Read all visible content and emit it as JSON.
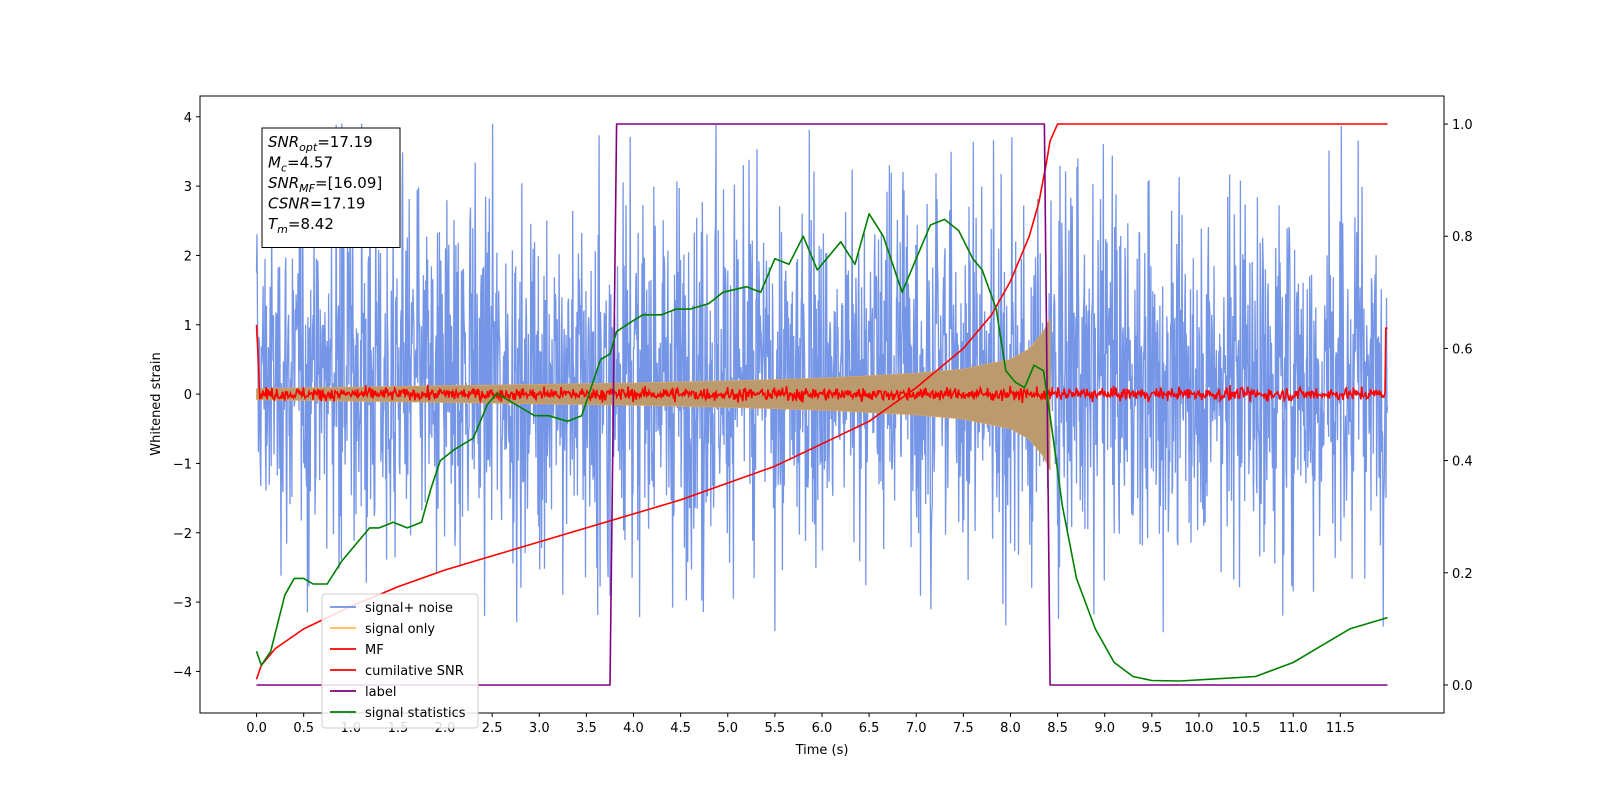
{
  "chart_data": {
    "type": "line",
    "title": "",
    "xlabel": "Time (s)",
    "ylabel": "Whitened strain",
    "xlim": [
      -0.6,
      12.6
    ],
    "ylim": [
      -4.6,
      4.3
    ],
    "y2lim": [
      -0.05,
      1.05
    ],
    "x_ticks": [
      0.0,
      0.5,
      1.0,
      1.5,
      2.0,
      2.5,
      3.0,
      3.5,
      4.0,
      4.5,
      5.0,
      5.5,
      6.0,
      6.5,
      7.0,
      7.5,
      8.0,
      8.5,
      9.0,
      9.5,
      10.0,
      10.5,
      11.0,
      11.5
    ],
    "x_tick_labels": [
      "0.0",
      "0.5",
      "1.0",
      "1.5",
      "2.0",
      "2.5",
      "3.0",
      "3.5",
      "4.0",
      "4.5",
      "5.0",
      "5.5",
      "6.0",
      "6.5",
      "7.0",
      "7.5",
      "8.0",
      "8.5",
      "9.0",
      "9.5",
      "10.0",
      "10.5",
      "11.0",
      "11.5"
    ],
    "y_ticks": [
      -4,
      -3,
      -2,
      -1,
      0,
      1,
      2,
      3,
      4
    ],
    "y_tick_labels": [
      "−4",
      "−3",
      "−2",
      "−1",
      "0",
      "1",
      "2",
      "3",
      "4"
    ],
    "y2_ticks": [
      0.0,
      0.2,
      0.4,
      0.6,
      0.8,
      1.0
    ],
    "y2_tick_labels": [
      "0.0",
      "0.2",
      "0.4",
      "0.6",
      "0.8",
      "1.0"
    ],
    "grid": false,
    "legend_position": "lower-left",
    "annotation": {
      "lines": [
        {
          "base": "SNR",
          "sub": "opt",
          "rest": "=17.19"
        },
        {
          "base": "M",
          "sub": "c",
          "rest": "=4.57"
        },
        {
          "base": "SNR",
          "sub": "MF",
          "rest": "=[16.09]"
        },
        {
          "base": "CSNR",
          "sub": "",
          "rest": "=17.19"
        },
        {
          "base": "T",
          "sub": "m",
          "rest": "=8.42"
        }
      ]
    },
    "merger_time": 8.42,
    "noise_amplitude": {
      "typical_band": [
        -1.8,
        2.3
      ],
      "extreme": [
        -4.2,
        3.9
      ]
    },
    "series": [
      {
        "name": "signal+ noise",
        "color": "#6e8fe6",
        "axis": "left",
        "x": [
          0.0,
          12.0
        ],
        "y": [
          -1.8,
          2.3
        ]
      },
      {
        "name": "signal only",
        "color": "#ffb74d",
        "axis": "left",
        "x": [
          0.0,
          1.0,
          2.0,
          3.0,
          4.0,
          5.0,
          6.0,
          7.0,
          7.5,
          8.0,
          8.2,
          8.35,
          8.42
        ],
        "y": [
          0.08,
          0.1,
          0.12,
          0.14,
          0.16,
          0.19,
          0.23,
          0.3,
          0.36,
          0.5,
          0.65,
          0.9,
          1.1
        ]
      },
      {
        "name": "MF",
        "color": "#ff0000",
        "axis": "left",
        "x": [
          0.0,
          12.0
        ],
        "y": [
          0.0,
          0.0
        ]
      },
      {
        "name": "cumilative SNR",
        "color": "#ff0000",
        "axis": "right",
        "x": [
          0.0,
          0.05,
          0.2,
          0.5,
          1.0,
          1.5,
          2.0,
          2.5,
          3.0,
          3.5,
          4.0,
          4.5,
          5.0,
          5.5,
          6.0,
          6.5,
          7.0,
          7.5,
          7.8,
          8.0,
          8.2,
          8.3,
          8.38,
          8.42,
          8.5,
          12.0
        ],
        "y": [
          0.01,
          0.035,
          0.065,
          0.1,
          0.14,
          0.175,
          0.205,
          0.23,
          0.255,
          0.28,
          0.305,
          0.33,
          0.36,
          0.39,
          0.43,
          0.47,
          0.53,
          0.6,
          0.66,
          0.72,
          0.8,
          0.86,
          0.93,
          0.97,
          1.0,
          1.0
        ]
      },
      {
        "name": "label",
        "color": "#800080",
        "axis": "right",
        "x": [
          0.0,
          3.75,
          3.82,
          8.36,
          8.42,
          12.0
        ],
        "y": [
          0.0,
          0.0,
          1.0,
          1.0,
          0.0,
          0.0
        ]
      },
      {
        "name": "signal statistics",
        "color": "#008000",
        "axis": "right",
        "x": [
          0.0,
          0.05,
          0.15,
          0.3,
          0.4,
          0.5,
          0.6,
          0.75,
          0.9,
          1.0,
          1.1,
          1.2,
          1.3,
          1.45,
          1.6,
          1.75,
          1.85,
          1.95,
          2.1,
          2.3,
          2.45,
          2.55,
          2.75,
          2.95,
          3.1,
          3.3,
          3.45,
          3.55,
          3.65,
          3.75,
          3.82,
          4.0,
          4.1,
          4.3,
          4.45,
          4.6,
          4.8,
          4.95,
          5.2,
          5.35,
          5.5,
          5.65,
          5.8,
          5.95,
          6.05,
          6.2,
          6.35,
          6.5,
          6.65,
          6.85,
          7.0,
          7.15,
          7.3,
          7.45,
          7.6,
          7.7,
          7.85,
          7.95,
          8.05,
          8.15,
          8.25,
          8.35,
          8.42,
          8.55,
          8.7,
          8.9,
          9.1,
          9.3,
          9.5,
          9.8,
          10.1,
          10.6,
          11.0,
          11.3,
          11.6,
          12.0
        ],
        "y": [
          0.06,
          0.035,
          0.06,
          0.16,
          0.19,
          0.19,
          0.18,
          0.18,
          0.22,
          0.24,
          0.26,
          0.28,
          0.28,
          0.29,
          0.28,
          0.29,
          0.35,
          0.4,
          0.42,
          0.44,
          0.5,
          0.52,
          0.5,
          0.48,
          0.48,
          0.47,
          0.48,
          0.53,
          0.58,
          0.59,
          0.63,
          0.65,
          0.66,
          0.66,
          0.67,
          0.67,
          0.68,
          0.7,
          0.71,
          0.7,
          0.76,
          0.75,
          0.8,
          0.74,
          0.76,
          0.79,
          0.75,
          0.84,
          0.8,
          0.7,
          0.76,
          0.82,
          0.83,
          0.81,
          0.76,
          0.74,
          0.67,
          0.56,
          0.54,
          0.53,
          0.57,
          0.56,
          0.48,
          0.32,
          0.19,
          0.1,
          0.04,
          0.015,
          0.008,
          0.007,
          0.01,
          0.015,
          0.04,
          0.07,
          0.1,
          0.12
        ]
      }
    ]
  }
}
